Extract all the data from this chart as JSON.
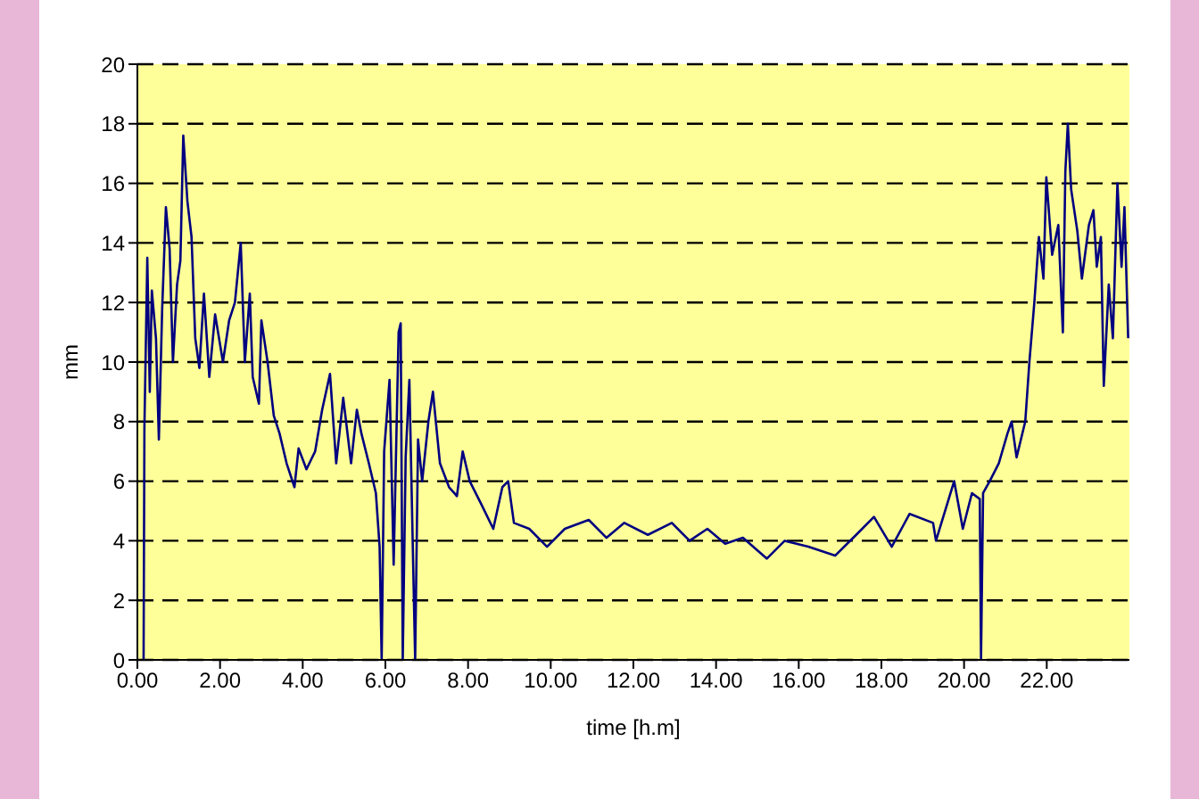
{
  "chart_data": {
    "type": "line",
    "xlabel": "time [h.m]",
    "ylabel": "mm",
    "xlim": [
      0,
      24
    ],
    "xticks": [
      {
        "value": 0,
        "label": "0.00"
      },
      {
        "value": 2,
        "label": "2.00"
      },
      {
        "value": 4,
        "label": "4.00"
      },
      {
        "value": 6,
        "label": "6.00"
      },
      {
        "value": 8,
        "label": "8.00"
      },
      {
        "value": 10,
        "label": "10.00"
      },
      {
        "value": 12,
        "label": "12.00"
      },
      {
        "value": 14,
        "label": "14.00"
      },
      {
        "value": 16,
        "label": "16.00"
      },
      {
        "value": 18,
        "label": "18.00"
      },
      {
        "value": 20,
        "label": "20.00"
      },
      {
        "value": 22,
        "label": "22.00"
      }
    ],
    "ylim": [
      0,
      20
    ],
    "yticks": [
      0,
      2,
      4,
      6,
      8,
      10,
      12,
      14,
      16,
      18,
      20
    ],
    "grid": "y",
    "line_style": "solid",
    "marker": "none",
    "series": [
      {
        "color": "#000080",
        "x": [
          0.15,
          0.17,
          0.24,
          0.3,
          0.35,
          0.45,
          0.52,
          0.6,
          0.69,
          0.78,
          0.86,
          0.96,
          1.04,
          1.11,
          1.21,
          1.31,
          1.4,
          1.5,
          1.61,
          1.74,
          1.88,
          2.07,
          2.22,
          2.36,
          2.5,
          2.6,
          2.72,
          2.79,
          2.94,
          3.0,
          3.15,
          3.3,
          3.44,
          3.61,
          3.8,
          3.9,
          4.09,
          4.3,
          4.47,
          4.66,
          4.81,
          4.98,
          5.17,
          5.31,
          5.42,
          5.6,
          5.77,
          5.86,
          5.91,
          5.97,
          6.1,
          6.2,
          6.32,
          6.37,
          6.42,
          6.49,
          6.58,
          6.66,
          6.72,
          6.79,
          6.89,
          7.04,
          7.15,
          7.32,
          7.54,
          7.73,
          7.87,
          8.04,
          8.33,
          8.61,
          8.83,
          8.97,
          9.11,
          9.48,
          9.91,
          10.34,
          10.92,
          11.35,
          11.78,
          12.35,
          12.93,
          13.36,
          13.79,
          14.22,
          14.65,
          15.23,
          15.66,
          16.23,
          16.88,
          17.39,
          17.82,
          18.25,
          18.68,
          19.25,
          19.32,
          19.76,
          19.97,
          20.19,
          20.38,
          20.41,
          20.46,
          20.62,
          20.84,
          21.05,
          21.15,
          21.27,
          21.48,
          21.58,
          21.7,
          21.81,
          21.92,
          21.99,
          22.13,
          22.28,
          22.39,
          22.45,
          22.51,
          22.59,
          22.74,
          22.85,
          23.02,
          23.13,
          23.21,
          23.31,
          23.38,
          23.5,
          23.6,
          23.71,
          23.81,
          23.88,
          23.97
        ],
        "values": [
          0,
          7.8,
          13.5,
          9,
          12.4,
          10.8,
          7.4,
          11.8,
          15.2,
          13.8,
          10,
          12.6,
          13.4,
          17.6,
          15.4,
          14.2,
          10.8,
          9.8,
          12.3,
          9.5,
          11.6,
          10,
          11.4,
          12,
          14,
          10,
          12.3,
          9.5,
          8.6,
          11.4,
          10,
          8.2,
          7.6,
          6.6,
          5.8,
          7.1,
          6.4,
          7,
          8.4,
          9.6,
          6.6,
          8.8,
          6.6,
          8.4,
          7.6,
          6.6,
          5.6,
          3.8,
          0,
          7,
          9.4,
          3.2,
          11,
          11.3,
          0,
          6.8,
          9.4,
          4,
          0,
          7.4,
          6,
          8,
          9,
          6.6,
          5.8,
          5.5,
          7,
          6,
          5.2,
          4.4,
          5.8,
          6,
          4.6,
          4.4,
          3.8,
          4.4,
          4.7,
          4.1,
          4.6,
          4.2,
          4.6,
          4,
          4.4,
          3.9,
          4.1,
          3.4,
          4,
          3.8,
          3.5,
          4.2,
          4.8,
          3.8,
          4.9,
          4.6,
          4,
          6,
          4.4,
          5.6,
          5.4,
          0,
          5.6,
          6,
          6.6,
          7.6,
          8,
          6.8,
          8,
          10,
          12,
          14.2,
          12.8,
          16.2,
          13.6,
          14.6,
          11,
          16.4,
          18,
          15.8,
          14.4,
          12.8,
          14.6,
          15.1,
          13.2,
          14.2,
          9.2,
          12.6,
          10.8,
          16,
          13.2,
          15.2,
          10.8
        ]
      }
    ]
  }
}
